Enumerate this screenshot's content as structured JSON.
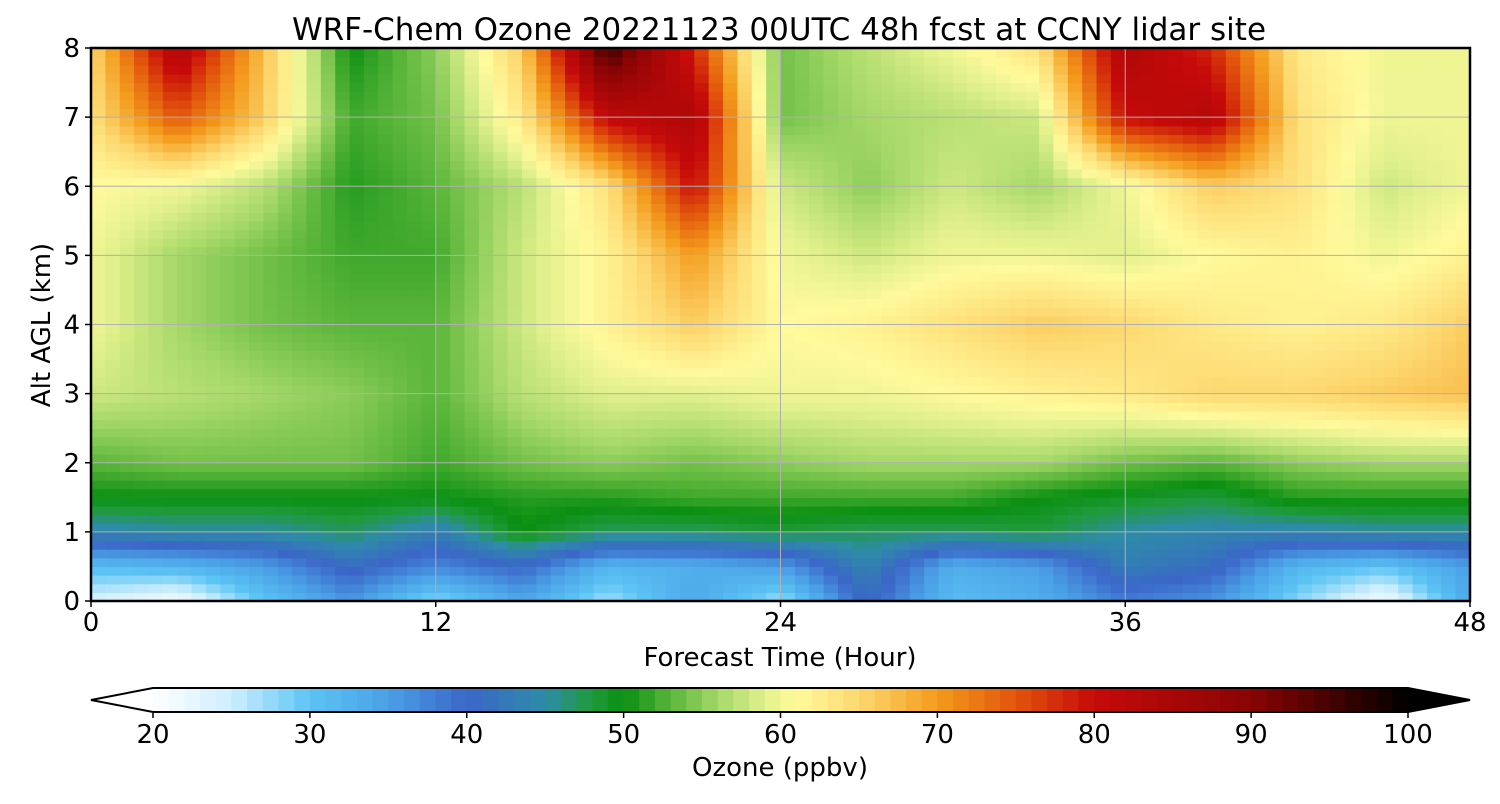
{
  "chart_data": {
    "type": "heatmap",
    "title": "WRF-Chem Ozone  20221123 00UTC 48h fcst at CCNY lidar site",
    "xlabel": "Forecast Time (Hour)",
    "ylabel": "Alt AGL (km)",
    "xlim": [
      0,
      48
    ],
    "ylim": [
      0,
      8
    ],
    "xticks": [
      0,
      12,
      24,
      36,
      48
    ],
    "yticks": [
      0,
      1,
      2,
      3,
      4,
      5,
      6,
      7,
      8
    ],
    "grid": true,
    "x": [
      0,
      3,
      6,
      9,
      12,
      15,
      18,
      21,
      24,
      27,
      30,
      33,
      36,
      39,
      42,
      45,
      48
    ],
    "y": [
      0,
      0.5,
      1,
      1.5,
      2,
      3,
      4,
      5,
      6,
      7,
      8
    ],
    "z": [
      [
        24,
        21,
        30,
        36,
        28,
        34,
        27,
        34,
        27,
        41,
        31,
        33,
        38,
        36,
        28,
        21,
        34
      ],
      [
        31,
        32,
        35,
        41,
        37,
        40,
        32,
        33,
        35,
        44,
        33,
        35,
        43,
        41,
        32,
        30,
        35
      ],
      [
        44,
        45,
        45,
        47,
        43,
        50,
        47,
        47,
        48,
        47,
        47,
        48,
        45,
        44,
        44,
        45,
        45
      ],
      [
        50,
        50,
        50,
        50,
        50,
        51,
        51,
        52,
        52,
        52,
        52,
        50,
        49,
        48,
        51,
        51,
        51
      ],
      [
        53,
        54,
        54,
        54,
        52,
        54,
        55,
        54,
        55,
        56,
        56,
        56,
        54,
        53,
        55,
        56,
        56
      ],
      [
        58,
        57,
        56,
        55,
        53,
        57,
        59,
        59,
        60,
        60,
        61,
        62,
        63,
        65,
        65,
        66,
        67
      ],
      [
        60,
        56,
        54,
        53,
        53,
        58,
        62,
        66,
        61,
        62,
        64,
        66,
        65,
        63,
        62,
        63,
        66
      ],
      [
        60,
        56,
        54,
        52,
        52,
        58,
        62,
        70,
        60,
        58,
        60,
        60,
        59,
        61,
        62,
        60,
        62
      ],
      [
        61,
        60,
        57,
        51,
        53,
        57,
        64,
        80,
        58,
        55,
        58,
        56,
        60,
        66,
        64,
        58,
        60
      ],
      [
        64,
        75,
        66,
        52,
        54,
        63,
        81,
        84,
        54,
        56,
        57,
        58,
        80,
        83,
        64,
        60,
        60
      ],
      [
        65,
        84,
        67,
        50,
        55,
        66,
        96,
        78,
        54,
        57,
        60,
        64,
        84,
        78,
        63,
        60,
        60
      ]
    ],
    "colorbar": {
      "label": "Ozone  (ppbv)",
      "min": 20,
      "max": 100,
      "extend": "both",
      "ticks": [
        20,
        30,
        40,
        50,
        60,
        70,
        80,
        90,
        100
      ]
    },
    "colormap": [
      [
        20,
        "#ffffff"
      ],
      [
        25,
        "#cdeeff"
      ],
      [
        30,
        "#5cc4f4"
      ],
      [
        35,
        "#4aa0e6"
      ],
      [
        40,
        "#3b66c8"
      ],
      [
        45,
        "#2e8ca8"
      ],
      [
        48,
        "#1f9a3a"
      ],
      [
        50,
        "#0a8f12"
      ],
      [
        53,
        "#5ab53a"
      ],
      [
        56,
        "#a5d868"
      ],
      [
        59,
        "#e1f08c"
      ],
      [
        61,
        "#fffa9c"
      ],
      [
        65,
        "#fdd870"
      ],
      [
        70,
        "#f39b1c"
      ],
      [
        75,
        "#e2540c"
      ],
      [
        80,
        "#c60a0a"
      ],
      [
        90,
        "#8a0404"
      ],
      [
        100,
        "#000000"
      ]
    ]
  }
}
